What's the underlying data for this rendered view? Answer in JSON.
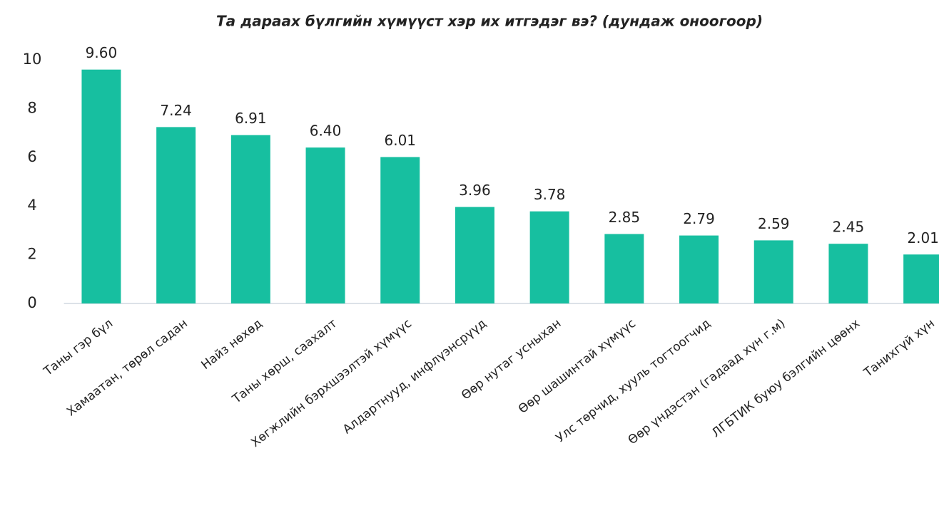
{
  "chart_data": {
    "type": "bar",
    "title": "Та дараах бүлгийн хүмүүст хэр их итгэдэг вэ? (дундаж оноогоор)",
    "categories": [
      "Таны гэр бүл",
      "Хамаатан, төрөл садан",
      "Найз нөхөд",
      "Таны хөрш, саахалт",
      "Хөгжлийн бэрхшээлтэй хүмүүс",
      "Алдартнууд, инфлүэнсрүүд",
      "Өөр нутаг усныхан",
      "Өөр шашинтай хүмүүс",
      "Улс төрчид, хууль тогтоогчид",
      "Өөр үндэстэн (гадаад хүн г.м)",
      "ЛГБТИК буюу бэлгийн цөөнх",
      "Танихгүй хүн"
    ],
    "values": [
      9.6,
      7.24,
      6.91,
      6.4,
      6.01,
      3.96,
      3.78,
      2.85,
      2.79,
      2.59,
      2.45,
      2.01
    ],
    "value_labels": [
      "9.60",
      "7.24",
      "6.91",
      "6.40",
      "6.01",
      "3.96",
      "3.78",
      "2.85",
      "2.79",
      "2.59",
      "2.45",
      "2.01"
    ],
    "color": "#17bfa0",
    "ylim": [
      0,
      10
    ],
    "yticks": [
      0,
      2,
      4,
      6,
      8,
      10
    ],
    "grid": false
  }
}
